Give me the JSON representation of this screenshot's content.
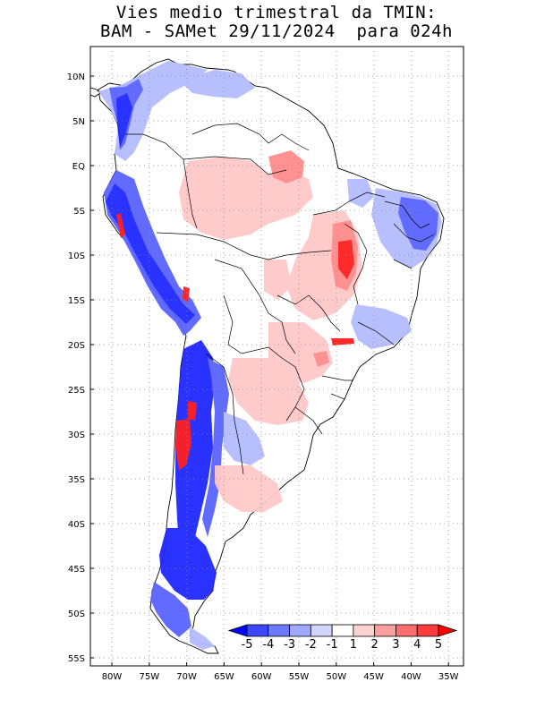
{
  "title": {
    "line1": "Vies medio trimestral da TMIN:",
    "line2": "BAM - SAMet 29/11/2024  para 024h"
  },
  "axes": {
    "lat_ticks": [
      "10N",
      "5N",
      "EQ",
      "5S",
      "10S",
      "15S",
      "20S",
      "25S",
      "30S",
      "35S",
      "40S",
      "45S",
      "50S",
      "55S"
    ],
    "lon_ticks": [
      "80W",
      "75W",
      "70W",
      "65W",
      "60W",
      "55W",
      "50W",
      "45W",
      "40W",
      "35W"
    ]
  },
  "colorbar": {
    "labels": [
      "-5",
      "-4",
      "-3",
      "-2",
      "-1",
      "1",
      "2",
      "3",
      "4",
      "5"
    ],
    "colors": [
      "#0000ff",
      "#3c46ff",
      "#6e78ff",
      "#a0a8ff",
      "#d2d6ff",
      "#ffffff",
      "#ffd2d2",
      "#ffa0a0",
      "#ff6e6e",
      "#ff3c3c",
      "#ff0000"
    ]
  },
  "palette": {
    "blue_strong": "#1e28ff",
    "blue_mid": "#5a64ff",
    "blue_light": "#b4bcff",
    "red_light": "#ffc8c8",
    "red_mid": "#ff8c8c",
    "red_strong": "#ff2020"
  }
}
